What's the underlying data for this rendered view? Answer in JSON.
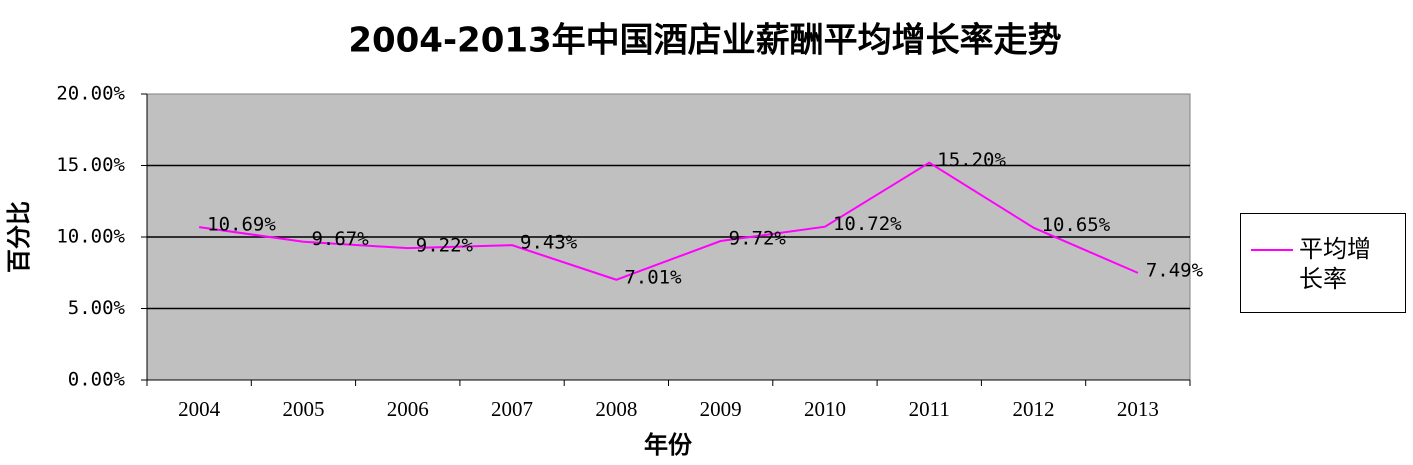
{
  "chart_data": {
    "type": "line",
    "title": "2004-2013年中国酒店业薪酬平均增长率走势",
    "x_label": "年份",
    "y_label": "百分比",
    "categories": [
      "2004",
      "2005",
      "2006",
      "2007",
      "2008",
      "2009",
      "2010",
      "2011",
      "2012",
      "2013"
    ],
    "series": [
      {
        "name": "平均增长率",
        "color": "#ff00ff",
        "values": [
          10.69,
          9.67,
          9.22,
          9.43,
          7.01,
          9.72,
          10.72,
          15.2,
          10.65,
          7.49
        ],
        "value_labels": [
          "10.69%",
          "9.67%",
          "9.22%",
          "9.43%",
          "7.01%",
          "9.72%",
          "10.72%",
          "15.20%",
          "10.65%",
          "7.49%"
        ]
      }
    ],
    "ylim": [
      0,
      20
    ],
    "yticks": [
      {
        "value": 0,
        "label": "0.00%"
      },
      {
        "value": 5,
        "label": "5.00%"
      },
      {
        "value": 10,
        "label": "10.00%"
      },
      {
        "value": 15,
        "label": "15.00%"
      },
      {
        "value": 20,
        "label": "20.00%"
      }
    ],
    "grid": true,
    "legend": "right"
  }
}
